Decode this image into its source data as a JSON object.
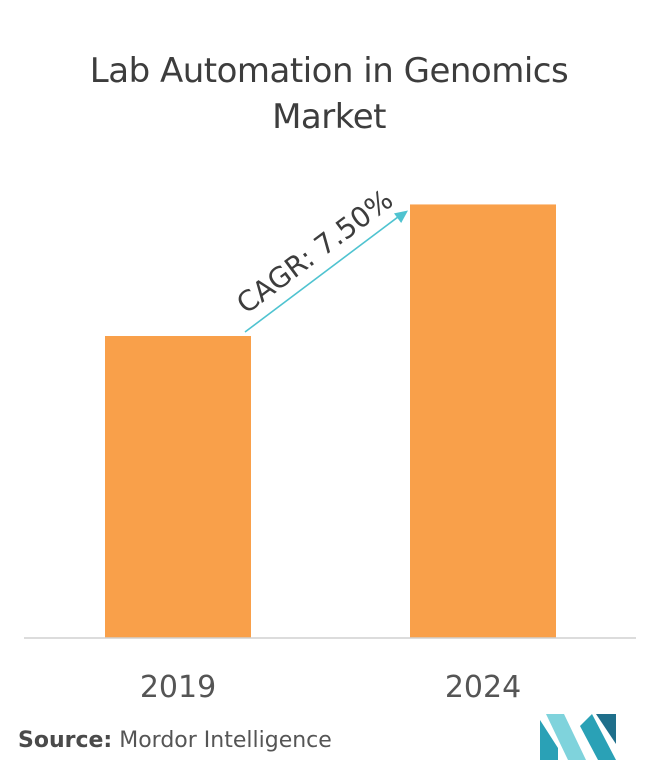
{
  "title_line1": "Lab Automation in Genomics",
  "title_line2": "Market",
  "chart_data": {
    "type": "bar",
    "categories": [
      "2019",
      "2024"
    ],
    "values": [
      1,
      1.4356
    ],
    "ylim": [
      0,
      1.5
    ],
    "annotation": "CAGR: 7.50%",
    "bar_color": "#F9A04A",
    "axis_color": "#d0d0d0",
    "arrow_color": "#4FC3D0",
    "grid": false
  },
  "source": {
    "label": "Source:",
    "text": "Mordor Intelligence"
  },
  "logo": {
    "colors": [
      "#7fd3dc",
      "#2aa1b6",
      "#1f6f8b"
    ]
  }
}
